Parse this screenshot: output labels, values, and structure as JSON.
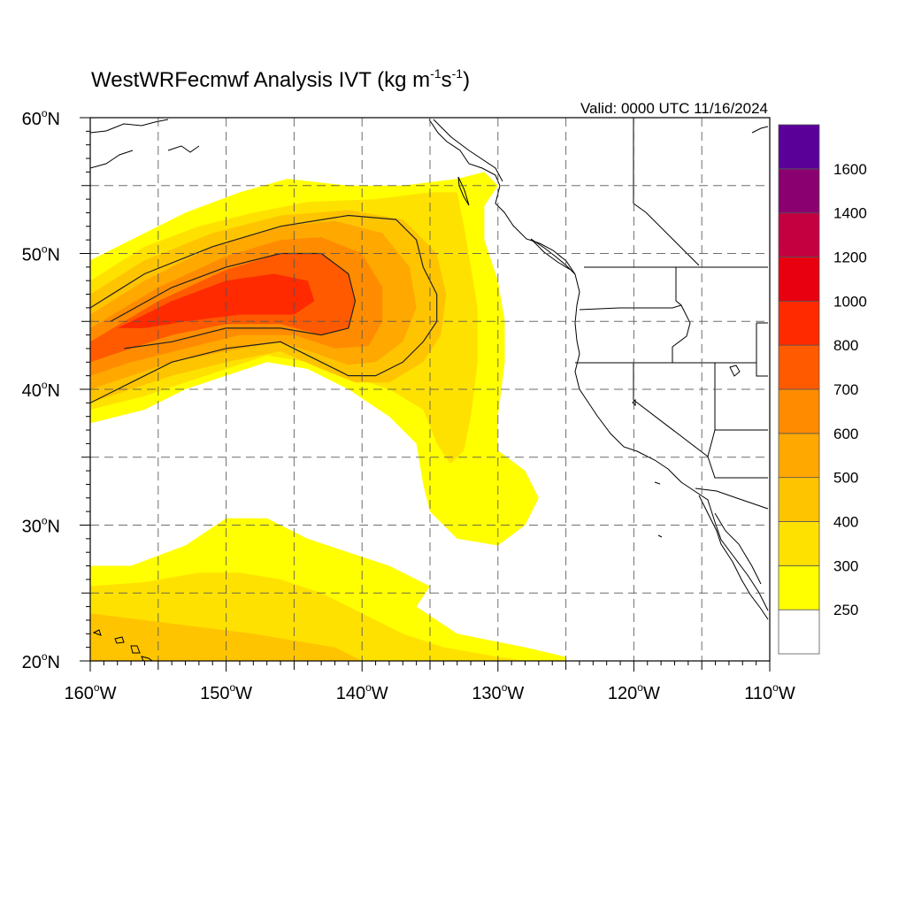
{
  "title": {
    "prefix": "WestWRFecmwf Analysis IVT (kg m",
    "sup1": "-1",
    "mid": "s",
    "sup2": "-1",
    "suffix": ")"
  },
  "valid_text": "Valid: 0000 UTC 11/16/2024",
  "map": {
    "lon_range": [
      -160,
      -110
    ],
    "lat_range": [
      20,
      60
    ],
    "grid_lon_step": 5,
    "grid_lat_step": 5,
    "projection": "cylindrical-equidistant",
    "x_ticks": [
      {
        "lon": -160,
        "num": "160",
        "deg": "o",
        "hem": "W"
      },
      {
        "lon": -150,
        "num": "150",
        "deg": "o",
        "hem": "W"
      },
      {
        "lon": -140,
        "num": "140",
        "deg": "o",
        "hem": "W"
      },
      {
        "lon": -130,
        "num": "130",
        "deg": "o",
        "hem": "W"
      },
      {
        "lon": -120,
        "num": "120",
        "deg": "o",
        "hem": "W"
      },
      {
        "lon": -110,
        "num": "110",
        "deg": "o",
        "hem": "W"
      }
    ],
    "y_ticks": [
      {
        "lat": 60,
        "num": "60",
        "deg": "o",
        "hem": "N"
      },
      {
        "lat": 50,
        "num": "50",
        "deg": "o",
        "hem": "N"
      },
      {
        "lat": 40,
        "num": "40",
        "deg": "o",
        "hem": "N"
      },
      {
        "lat": 30,
        "num": "30",
        "deg": "o",
        "hem": "N"
      },
      {
        "lat": 20,
        "num": "20",
        "deg": "o",
        "hem": "N"
      }
    ]
  },
  "colorbar": {
    "levels": [
      "250",
      "300",
      "400",
      "500",
      "600",
      "700",
      "800",
      "1000",
      "1200",
      "1400",
      "1600"
    ],
    "colors": [
      "#ffffff",
      "#ffff00",
      "#ffe100",
      "#ffc400",
      "#ffa800",
      "#ff8c00",
      "#ff5a00",
      "#ff2a00",
      "#e80010",
      "#c40040",
      "#8a0070",
      "#5a0099"
    ]
  },
  "ivt_field": {
    "layers": [
      {
        "level_index": 1,
        "polygon": [
          [
            -160,
            49.5
          ],
          [
            -157,
            51
          ],
          [
            -153,
            53
          ],
          [
            -149,
            54.5
          ],
          [
            -145.5,
            55.5
          ],
          [
            -141,
            55
          ],
          [
            -137,
            55
          ],
          [
            -133,
            55.5
          ],
          [
            -131,
            56
          ],
          [
            -130,
            55
          ],
          [
            -131,
            53.5
          ],
          [
            -131,
            51
          ],
          [
            -130,
            48
          ],
          [
            -129.5,
            45
          ],
          [
            -129.5,
            42
          ],
          [
            -130,
            38
          ],
          [
            -130,
            35.5
          ],
          [
            -128,
            34
          ],
          [
            -127,
            32
          ],
          [
            -128,
            30
          ],
          [
            -130,
            28.5
          ],
          [
            -133,
            29
          ],
          [
            -134,
            30
          ],
          [
            -135,
            31
          ],
          [
            -135.5,
            33
          ],
          [
            -136,
            36
          ],
          [
            -138,
            38
          ],
          [
            -141,
            40
          ],
          [
            -144,
            41.5
          ],
          [
            -147,
            42
          ],
          [
            -150,
            41
          ],
          [
            -153,
            40
          ],
          [
            -156,
            38.5
          ],
          [
            -160,
            37.5
          ]
        ]
      },
      {
        "level_index": 2,
        "polygon": [
          [
            -160,
            48
          ],
          [
            -156,
            50.5
          ],
          [
            -152,
            52
          ],
          [
            -148,
            53
          ],
          [
            -144,
            53.8
          ],
          [
            -139,
            54
          ],
          [
            -135,
            54.5
          ],
          [
            -133,
            54.5
          ],
          [
            -132.5,
            52
          ],
          [
            -132,
            49
          ],
          [
            -131.5,
            46
          ],
          [
            -131.5,
            42
          ],
          [
            -132,
            38
          ],
          [
            -132.5,
            35.5
          ],
          [
            -133.5,
            34.5
          ],
          [
            -134.5,
            36
          ],
          [
            -135.5,
            38.5
          ],
          [
            -138,
            40
          ],
          [
            -141,
            41
          ],
          [
            -144,
            42
          ],
          [
            -147,
            42.5
          ],
          [
            -150,
            41.5
          ],
          [
            -153,
            40.5
          ],
          [
            -156,
            39.5
          ],
          [
            -160,
            38.5
          ]
        ]
      },
      {
        "level_index": 3,
        "polygon": [
          [
            -160,
            47
          ],
          [
            -156,
            49.5
          ],
          [
            -151,
            51.5
          ],
          [
            -146,
            52.8
          ],
          [
            -141,
            53.2
          ],
          [
            -137,
            52.5
          ],
          [
            -134.5,
            50
          ],
          [
            -133.8,
            47
          ],
          [
            -134.2,
            44
          ],
          [
            -135.5,
            42
          ],
          [
            -138,
            40.5
          ],
          [
            -140.5,
            40.5
          ],
          [
            -143,
            41.5
          ],
          [
            -146,
            42.8
          ],
          [
            -150,
            42
          ],
          [
            -154,
            41
          ],
          [
            -157,
            40
          ],
          [
            -160,
            39
          ]
        ]
      },
      {
        "level_index": 4,
        "polygon": [
          [
            -160,
            45.5
          ],
          [
            -156,
            48
          ],
          [
            -151,
            50.5
          ],
          [
            -146,
            52
          ],
          [
            -142,
            52.4
          ],
          [
            -138.5,
            51.5
          ],
          [
            -136.5,
            49
          ],
          [
            -136,
            46
          ],
          [
            -137,
            43.5
          ],
          [
            -139,
            42
          ],
          [
            -141,
            41.8
          ],
          [
            -143,
            42.5
          ],
          [
            -146,
            43.5
          ],
          [
            -150,
            42.8
          ],
          [
            -154,
            42
          ],
          [
            -157,
            41
          ],
          [
            -160,
            40
          ]
        ]
      },
      {
        "level_index": 5,
        "polygon": [
          [
            -160,
            44.5
          ],
          [
            -155,
            47.5
          ],
          [
            -150,
            49.8
          ],
          [
            -146,
            51
          ],
          [
            -143,
            51.2
          ],
          [
            -140,
            50
          ],
          [
            -138.5,
            47.5
          ],
          [
            -138.5,
            45
          ],
          [
            -139.5,
            43.2
          ],
          [
            -142,
            43
          ],
          [
            -145,
            44
          ],
          [
            -149,
            44
          ],
          [
            -153,
            43
          ],
          [
            -157,
            42
          ],
          [
            -160,
            41
          ]
        ]
      },
      {
        "level_index": 6,
        "polygon": [
          [
            -160,
            43.5
          ],
          [
            -155,
            46.5
          ],
          [
            -150,
            48.8
          ],
          [
            -146,
            50
          ],
          [
            -143,
            50
          ],
          [
            -141,
            48.5
          ],
          [
            -140.5,
            46.5
          ],
          [
            -141,
            44.5
          ],
          [
            -143,
            44
          ],
          [
            -146,
            44.8
          ],
          [
            -150,
            44.8
          ],
          [
            -154,
            44
          ],
          [
            -157,
            43
          ],
          [
            -160,
            42
          ]
        ]
      },
      {
        "level_index": 7,
        "polygon": [
          [
            -158,
            44.5
          ],
          [
            -154,
            46.5
          ],
          [
            -150,
            48
          ],
          [
            -146.5,
            48.5
          ],
          [
            -144,
            48
          ],
          [
            -143.5,
            46.5
          ],
          [
            -145,
            45.5
          ],
          [
            -149,
            45.5
          ],
          [
            -153,
            45
          ],
          [
            -156,
            44.5
          ]
        ]
      },
      {
        "level_index": 1,
        "polygon": [
          [
            -160,
            27
          ],
          [
            -157,
            27
          ],
          [
            -153,
            28.5
          ],
          [
            -150,
            30.5
          ],
          [
            -147,
            30.5
          ],
          [
            -144,
            29
          ],
          [
            -141,
            28
          ],
          [
            -138,
            27
          ],
          [
            -136,
            26
          ],
          [
            -135,
            25.5
          ],
          [
            -136,
            24
          ],
          [
            -133,
            22
          ],
          [
            -128,
            21
          ],
          [
            -125,
            20.3
          ],
          [
            -125,
            20
          ],
          [
            -160,
            20
          ]
        ]
      },
      {
        "level_index": 2,
        "polygon": [
          [
            -160,
            25.5
          ],
          [
            -156,
            25.8
          ],
          [
            -152,
            26.5
          ],
          [
            -149,
            26.5
          ],
          [
            -146,
            26
          ],
          [
            -143,
            25
          ],
          [
            -140,
            23.5
          ],
          [
            -137,
            22
          ],
          [
            -134,
            21
          ],
          [
            -130,
            20.3
          ],
          [
            -128,
            20
          ],
          [
            -160,
            20
          ]
        ]
      },
      {
        "level_index": 3,
        "polygon": [
          [
            -160,
            23.5
          ],
          [
            -156,
            23
          ],
          [
            -152,
            22.5
          ],
          [
            -148,
            22
          ],
          [
            -145,
            21.5
          ],
          [
            -142,
            21
          ],
          [
            -140,
            20
          ],
          [
            -160,
            20
          ]
        ]
      }
    ],
    "contours": [
      {
        "level": "250",
        "points": [
          [
            -160,
            46
          ],
          [
            -156,
            48.5
          ],
          [
            -151,
            50.5
          ],
          [
            -146,
            52
          ],
          [
            -141,
            52.8
          ],
          [
            -137.5,
            52.5
          ],
          [
            -136,
            51
          ],
          [
            -135.5,
            49
          ],
          [
            -134.5,
            47
          ],
          [
            -134.5,
            45
          ],
          [
            -135.5,
            43.5
          ],
          [
            -137,
            42
          ],
          [
            -139,
            41
          ],
          [
            -141,
            41
          ],
          [
            -143,
            42
          ],
          [
            -146,
            43.5
          ],
          [
            -150,
            43
          ],
          [
            -154,
            42
          ],
          [
            -157,
            40.5
          ],
          [
            -160,
            39
          ]
        ]
      },
      {
        "level": "600",
        "points": [
          [
            -158.5,
            45
          ],
          [
            -154,
            47.5
          ],
          [
            -150,
            49
          ],
          [
            -146,
            50
          ],
          [
            -143,
            50
          ],
          [
            -141,
            48.5
          ],
          [
            -140.5,
            46.5
          ],
          [
            -141,
            44.5
          ],
          [
            -143,
            44
          ],
          [
            -146,
            44.5
          ],
          [
            -150,
            44.5
          ],
          [
            -154,
            43.5
          ],
          [
            -157.5,
            43
          ]
        ]
      }
    ]
  }
}
